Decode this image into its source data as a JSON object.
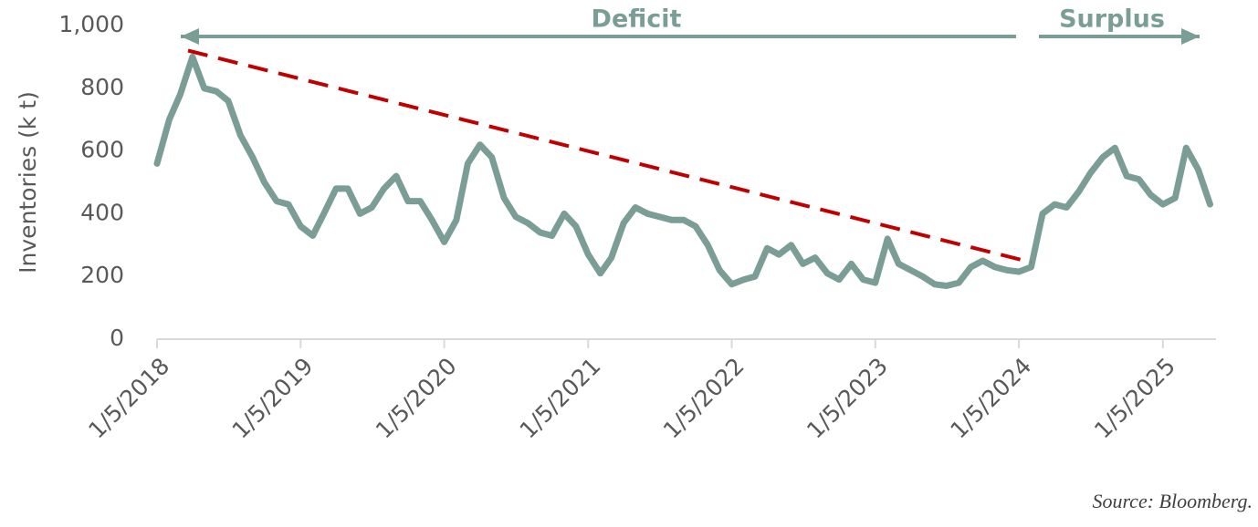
{
  "chart_data": {
    "type": "line",
    "y_label": "Inventories (k t)",
    "annotations": [
      "Deficit",
      "Surplus"
    ],
    "source": "Source: Bloomberg.",
    "color": "#7a9e95",
    "x": [
      "1/5/2018",
      "2/5/2018",
      "3/5/2018",
      "4/5/2018",
      "5/5/2018",
      "6/5/2018",
      "7/5/2018",
      "8/5/2018",
      "9/5/2018",
      "10/5/2018",
      "11/5/2018",
      "12/5/2018",
      "1/5/2019",
      "2/5/2019",
      "3/5/2019",
      "4/5/2019",
      "5/5/2019",
      "6/5/2019",
      "7/5/2019",
      "8/5/2019",
      "9/5/2019",
      "10/5/2019",
      "11/5/2019",
      "12/5/2019",
      "1/5/2020",
      "2/5/2020",
      "3/5/2020",
      "4/5/2020",
      "5/5/2020",
      "6/5/2020",
      "7/5/2020",
      "8/5/2020",
      "9/5/2020",
      "10/5/2020",
      "11/5/2020",
      "12/5/2020",
      "1/5/2021",
      "2/5/2021",
      "3/5/2021",
      "4/5/2021",
      "5/5/2021",
      "6/5/2021",
      "7/5/2021",
      "8/5/2021",
      "9/5/2021",
      "10/5/2021",
      "11/5/2021",
      "12/5/2021",
      "1/5/2022",
      "2/5/2022",
      "3/5/2022",
      "4/5/2022",
      "5/5/2022",
      "6/5/2022",
      "7/5/2022",
      "8/5/2022",
      "9/5/2022",
      "10/5/2022",
      "11/5/2022",
      "12/5/2022",
      "1/5/2023",
      "2/5/2023",
      "3/5/2023",
      "4/5/2023",
      "5/5/2023",
      "6/5/2023",
      "7/5/2023",
      "8/5/2023",
      "9/5/2023",
      "10/5/2023",
      "11/5/2023",
      "12/5/2023",
      "1/5/2024",
      "2/5/2024",
      "3/5/2024",
      "4/5/2024",
      "5/5/2024",
      "6/5/2024",
      "7/5/2024",
      "8/5/2024",
      "9/5/2024",
      "10/5/2024",
      "11/5/2024",
      "12/5/2024",
      "1/5/2025",
      "2/5/2025",
      "3/5/2025",
      "4/5/2025",
      "5/5/2025"
    ],
    "values": [
      560,
      700,
      780,
      900,
      800,
      790,
      760,
      650,
      580,
      500,
      440,
      430,
      360,
      330,
      400,
      480,
      480,
      400,
      420,
      480,
      520,
      440,
      440,
      380,
      310,
      380,
      560,
      620,
      580,
      450,
      390,
      370,
      340,
      330,
      400,
      360,
      270,
      210,
      260,
      370,
      420,
      400,
      390,
      380,
      380,
      360,
      300,
      220,
      175,
      190,
      200,
      290,
      270,
      300,
      240,
      260,
      210,
      190,
      240,
      190,
      180,
      320,
      240,
      220,
      200,
      175,
      170,
      180,
      230,
      250,
      230,
      220,
      215,
      230,
      400,
      430,
      420,
      470,
      530,
      580,
      610,
      520,
      510,
      460,
      430,
      450,
      610,
      540,
      430
    ],
    "trend": {
      "x": [
        "3/25/2018",
        "2/5/2024"
      ],
      "values": [
        920,
        245
      ],
      "color": "#c00000",
      "dashed": true
    },
    "xlim": [
      "1/5/2018",
      "5/20/2025"
    ],
    "xticks": [
      "1/5/2018",
      "1/5/2019",
      "1/5/2020",
      "1/5/2021",
      "1/5/2022",
      "1/5/2023",
      "1/5/2024",
      "1/5/2025"
    ],
    "ylim": [
      0,
      1000
    ],
    "yticks": [
      0,
      200,
      400,
      600,
      800,
      {
        "value": 1000,
        "label": "1,000"
      }
    ],
    "grid": false
  }
}
